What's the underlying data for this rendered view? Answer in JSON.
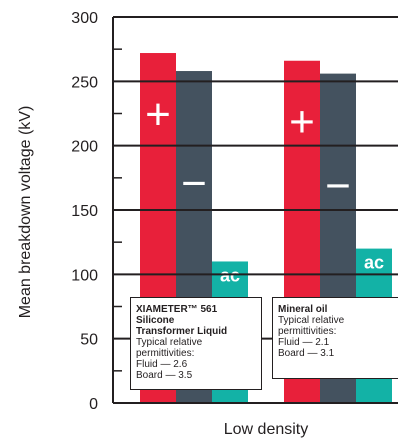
{
  "colors": {
    "positive": "#e8203a",
    "negative": "#44525f",
    "ac": "#13b2a6",
    "axis": "#231f20",
    "text": "#231f20"
  },
  "chart_data": {
    "type": "bar",
    "title": "",
    "xlabel": "Low density",
    "ylabel": "Mean breakdown voltage (kV)",
    "ylim": [
      0,
      300
    ],
    "yticks": [
      0,
      50,
      100,
      150,
      200,
      250,
      300
    ],
    "ytick_labels": [
      "0",
      "50",
      "100",
      "150",
      "200",
      "250",
      "300"
    ],
    "minor_ticks": [
      25,
      75,
      125,
      175,
      225,
      275
    ],
    "grid": false,
    "groups": [
      {
        "name": "XIAMETER™ 561 Silicone Transformer Liquid",
        "bars": [
          {
            "polarity": "positive",
            "label": "+",
            "value": 272
          },
          {
            "polarity": "negative",
            "label": "−",
            "value": 258
          },
          {
            "polarity": "ac",
            "label": "ac",
            "value": 110
          }
        ],
        "annotation": {
          "title_line1": "XIAMETER™ 561 Silicone",
          "title_line2": "Transformer Liquid",
          "line1": "Typical relative",
          "line2": "permittivities:",
          "line3": "Fluid — 2.6",
          "line4": "Board — 3.5"
        }
      },
      {
        "name": "Mineral oil",
        "bars": [
          {
            "polarity": "positive",
            "label": "+",
            "value": 266
          },
          {
            "polarity": "negative",
            "label": "−",
            "value": 256
          },
          {
            "polarity": "ac",
            "label": "ac",
            "value": 120
          }
        ],
        "annotation": {
          "title_line1": "Mineral oil",
          "line1": "Typical relative",
          "line2": "permittivities:",
          "line3": "Fluid — 2.1",
          "line4": "Board — 3.1"
        }
      }
    ]
  }
}
